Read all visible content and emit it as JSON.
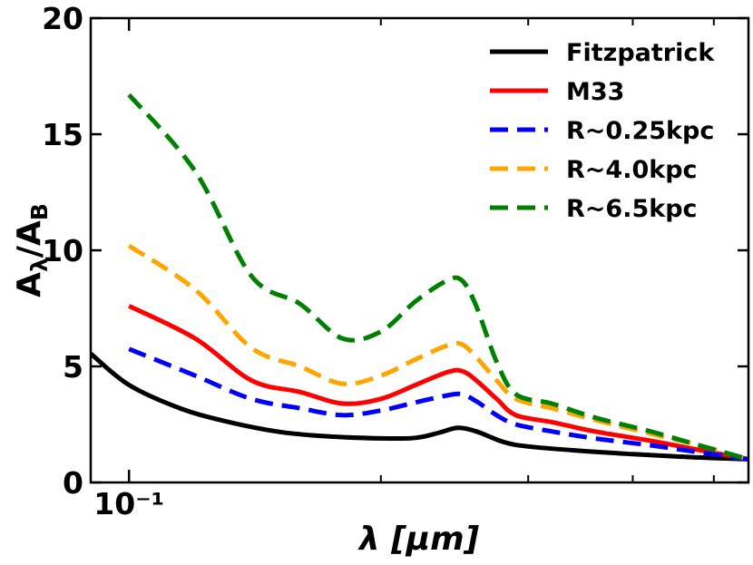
{
  "chart_data": {
    "type": "line",
    "xlabel": "λ [μm]",
    "ylabel": "A_λ/A_B",
    "xscale": "log",
    "xlim": [
      0.09,
      0.55
    ],
    "ylim": [
      0,
      20
    ],
    "y_ticks": [
      0,
      5,
      10,
      15,
      20
    ],
    "x_tick_labels": [
      {
        "value": 0.1,
        "text": "10⁻¹"
      }
    ],
    "x_minor_ticks": [
      0.2,
      0.3,
      0.4,
      0.5
    ],
    "grid": false,
    "legend_position": "top-right",
    "series": [
      {
        "name": "Fitzpatrick",
        "color": "#000000",
        "style": "solid",
        "points": [
          [
            0.09,
            5.55
          ],
          [
            0.1,
            4.2
          ],
          [
            0.115,
            3.2
          ],
          [
            0.13,
            2.65
          ],
          [
            0.15,
            2.2
          ],
          [
            0.17,
            2.0
          ],
          [
            0.2,
            1.9
          ],
          [
            0.22,
            1.92
          ],
          [
            0.235,
            2.15
          ],
          [
            0.247,
            2.35
          ],
          [
            0.26,
            2.2
          ],
          [
            0.28,
            1.75
          ],
          [
            0.3,
            1.55
          ],
          [
            0.35,
            1.35
          ],
          [
            0.4,
            1.22
          ],
          [
            0.45,
            1.12
          ],
          [
            0.5,
            1.05
          ],
          [
            0.55,
            1.0
          ]
        ]
      },
      {
        "name": "M33",
        "color": "#ff0000",
        "style": "solid",
        "points": [
          [
            0.1,
            7.6
          ],
          [
            0.12,
            6.2
          ],
          [
            0.14,
            4.4
          ],
          [
            0.16,
            3.9
          ],
          [
            0.18,
            3.4
          ],
          [
            0.2,
            3.6
          ],
          [
            0.22,
            4.2
          ],
          [
            0.24,
            4.75
          ],
          [
            0.25,
            4.8
          ],
          [
            0.26,
            4.4
          ],
          [
            0.275,
            3.6
          ],
          [
            0.29,
            2.9
          ],
          [
            0.32,
            2.6
          ],
          [
            0.36,
            2.2
          ],
          [
            0.42,
            1.8
          ],
          [
            0.48,
            1.4
          ],
          [
            0.55,
            1.0
          ]
        ]
      },
      {
        "name": "R~0.25kpc",
        "color": "#0000ff",
        "style": "dashed",
        "points": [
          [
            0.1,
            5.75
          ],
          [
            0.12,
            4.6
          ],
          [
            0.14,
            3.6
          ],
          [
            0.16,
            3.2
          ],
          [
            0.18,
            2.9
          ],
          [
            0.2,
            3.1
          ],
          [
            0.22,
            3.45
          ],
          [
            0.24,
            3.75
          ],
          [
            0.25,
            3.8
          ],
          [
            0.26,
            3.5
          ],
          [
            0.275,
            2.9
          ],
          [
            0.29,
            2.5
          ],
          [
            0.32,
            2.2
          ],
          [
            0.36,
            1.9
          ],
          [
            0.42,
            1.6
          ],
          [
            0.48,
            1.3
          ],
          [
            0.55,
            1.0
          ]
        ]
      },
      {
        "name": "R~4.0kpc",
        "color": "#ffa500",
        "style": "dashed",
        "points": [
          [
            0.1,
            10.2
          ],
          [
            0.12,
            8.3
          ],
          [
            0.14,
            5.8
          ],
          [
            0.16,
            5.0
          ],
          [
            0.18,
            4.25
          ],
          [
            0.2,
            4.6
          ],
          [
            0.22,
            5.3
          ],
          [
            0.24,
            5.9
          ],
          [
            0.25,
            5.95
          ],
          [
            0.26,
            5.4
          ],
          [
            0.275,
            4.4
          ],
          [
            0.29,
            3.6
          ],
          [
            0.32,
            3.2
          ],
          [
            0.36,
            2.7
          ],
          [
            0.42,
            2.1
          ],
          [
            0.48,
            1.6
          ],
          [
            0.55,
            1.0
          ]
        ]
      },
      {
        "name": "R~6.5kpc",
        "color": "#008000",
        "style": "dashed",
        "points": [
          [
            0.1,
            16.7
          ],
          [
            0.12,
            13.4
          ],
          [
            0.14,
            8.9
          ],
          [
            0.16,
            7.7
          ],
          [
            0.18,
            6.2
          ],
          [
            0.2,
            6.5
          ],
          [
            0.22,
            7.8
          ],
          [
            0.24,
            8.7
          ],
          [
            0.25,
            8.7
          ],
          [
            0.26,
            7.6
          ],
          [
            0.275,
            5.2
          ],
          [
            0.29,
            3.8
          ],
          [
            0.32,
            3.4
          ],
          [
            0.36,
            2.8
          ],
          [
            0.42,
            2.2
          ],
          [
            0.48,
            1.6
          ],
          [
            0.55,
            1.0
          ]
        ]
      }
    ]
  }
}
